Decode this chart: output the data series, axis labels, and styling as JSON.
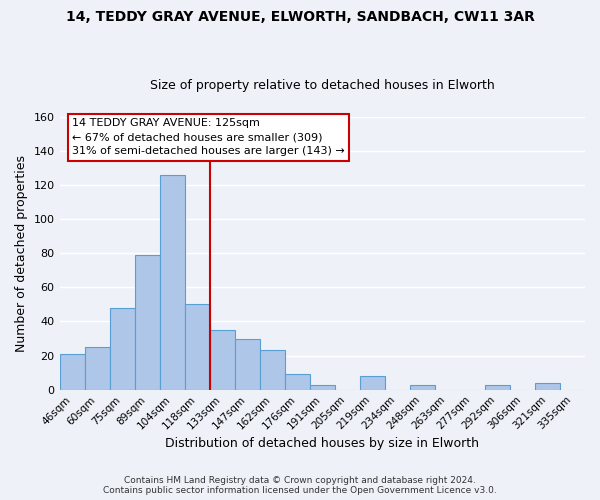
{
  "title": "14, TEDDY GRAY AVENUE, ELWORTH, SANDBACH, CW11 3AR",
  "subtitle": "Size of property relative to detached houses in Elworth",
  "xlabel": "Distribution of detached houses by size in Elworth",
  "ylabel": "Number of detached properties",
  "bar_labels": [
    "46sqm",
    "60sqm",
    "75sqm",
    "89sqm",
    "104sqm",
    "118sqm",
    "133sqm",
    "147sqm",
    "162sqm",
    "176sqm",
    "191sqm",
    "205sqm",
    "219sqm",
    "234sqm",
    "248sqm",
    "263sqm",
    "277sqm",
    "292sqm",
    "306sqm",
    "321sqm",
    "335sqm"
  ],
  "bar_values": [
    21,
    25,
    48,
    79,
    126,
    50,
    35,
    30,
    23,
    9,
    3,
    0,
    8,
    0,
    3,
    0,
    0,
    3,
    0,
    4,
    0
  ],
  "bar_color": "#aec6e8",
  "bar_edge_color": "#5a9fd4",
  "property_line_x": 5.5,
  "property_line_color": "#cc0000",
  "ylim": [
    0,
    160
  ],
  "yticks": [
    0,
    20,
    40,
    60,
    80,
    100,
    120,
    140,
    160
  ],
  "annotation_title": "14 TEDDY GRAY AVENUE: 125sqm",
  "annotation_line1": "← 67% of detached houses are smaller (309)",
  "annotation_line2": "31% of semi-detached houses are larger (143) →",
  "annotation_box_color": "#ffffff",
  "annotation_box_edge": "#cc0000",
  "footer_line1": "Contains HM Land Registry data © Crown copyright and database right 2024.",
  "footer_line2": "Contains public sector information licensed under the Open Government Licence v3.0.",
  "background_color": "#eef2f8",
  "grid_color": "#ffffff",
  "title_fontsize": 10,
  "subtitle_fontsize": 9
}
